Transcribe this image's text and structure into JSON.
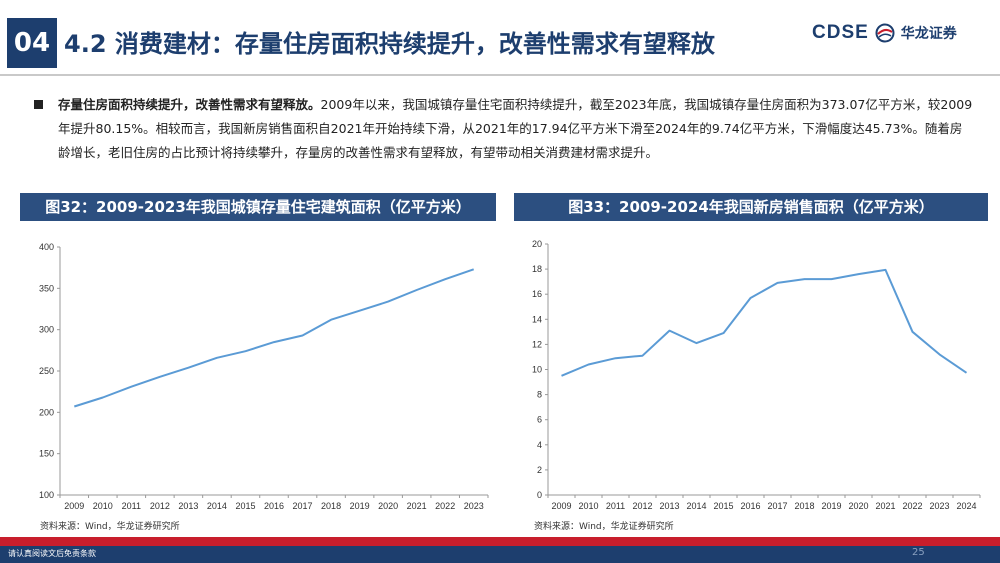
{
  "header": {
    "section_number": "04",
    "title": "4.2 消费建材：存量住房面积持续提升，改善性需求有望释放",
    "logo_text": "CDSE",
    "logo_cn": "华龙证券",
    "logo_icon": "dragon-globe-icon"
  },
  "bullet": {
    "bold": "存量住房面积持续提升，改善性需求有望释放。",
    "text": "2009年以来，我国城镇存量住宅面积持续提升，截至2023年底，我国城镇存量住房面积为373.07亿平方米，较2009年提升80.15%。相较而言，我国新房销售面积自2021年开始持续下滑，从2021年的17.94亿平方米下滑至2024年的9.74亿平方米，下滑幅度达45.73%。随着房龄增长，老旧住房的占比预计将持续攀升，存量房的改善性需求有望释放，有望带动相关消费建材需求提升。"
  },
  "chart_data": [
    {
      "type": "line",
      "title": "图32：2009-2023年我国城镇存量住宅建筑面积（亿平方米）",
      "categories": [
        "2009",
        "2010",
        "2011",
        "2012",
        "2013",
        "2014",
        "2015",
        "2016",
        "2017",
        "2018",
        "2019",
        "2020",
        "2021",
        "2022",
        "2023"
      ],
      "values": [
        207,
        218,
        231,
        243,
        254,
        266,
        274,
        285,
        293,
        312,
        323,
        334,
        348,
        361,
        373.07
      ],
      "ylim": [
        100,
        400
      ],
      "yticks": [
        100,
        150,
        200,
        250,
        300,
        350,
        400
      ],
      "grid": false,
      "color": "#5b9bd5",
      "source": "资料来源：Wind，华龙证券研究所"
    },
    {
      "type": "line",
      "title": "图33：2009-2024年我国新房销售面积（亿平方米）",
      "categories": [
        "2009",
        "2010",
        "2011",
        "2012",
        "2013",
        "2014",
        "2015",
        "2016",
        "2017",
        "2018",
        "2019",
        "2020",
        "2021",
        "2022",
        "2023",
        "2024"
      ],
      "values": [
        9.5,
        10.4,
        10.9,
        11.1,
        13.1,
        12.1,
        12.9,
        15.7,
        16.9,
        17.2,
        17.2,
        17.6,
        17.94,
        13.0,
        11.2,
        9.74
      ],
      "ylim": [
        0,
        20
      ],
      "yticks": [
        0,
        2,
        4,
        6,
        8,
        10,
        12,
        14,
        16,
        18,
        20
      ],
      "grid": false,
      "color": "#5b9bd5",
      "source": "资料来源：Wind，华龙证券研究所"
    }
  ],
  "footer": {
    "disclaimer": "请认真阅读文后免责条款",
    "page_number": "25"
  }
}
